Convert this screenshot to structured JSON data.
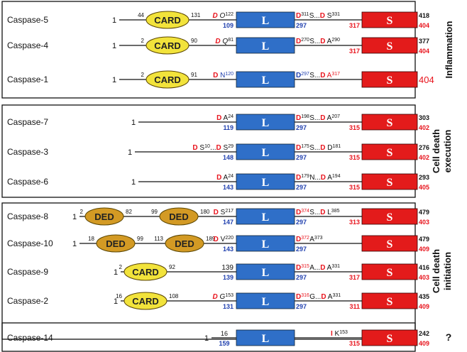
{
  "colors": {
    "red": "#e8141d",
    "blue": "#1f3fae",
    "black": "#111111",
    "domain_L": "#2f6fc8",
    "domain_S": "#e31b1b",
    "card": "#f2e33b",
    "ded": "#d39a24"
  },
  "groups": [
    {
      "label": "Inflammation",
      "rows": [
        {
          "name": "Caspase-5",
          "prodomains": [
            {
              "kind": "CARD",
              "left": "44",
              "right": "131"
            }
          ],
          "pre_links": [
            {
              "text": "D",
              "color": "red",
              "italic": true,
              "bold": true
            },
            {
              "text": " ",
              "color": "black"
            },
            {
              "text": "O",
              "color": "black",
              "italic": true
            },
            {
              "text": "122",
              "color": "black",
              "sup": true
            }
          ],
          "l_start": "109",
          "l_end_site": [
            {
              "text": "D",
              "color": "red",
              "bold": true
            },
            {
              "text": "311",
              "color": "black",
              "sup": true
            },
            {
              "text": "   S...",
              "color": "black"
            },
            {
              "text": "D",
              "color": "red",
              "bold": true
            },
            {
              "text": " S",
              "color": "black"
            },
            {
              "text": "331",
              "color": "black",
              "sup": true
            }
          ],
          "l_num": "297",
          "s_start": "317",
          "s_end_top": "418",
          "s_end_bottom": "404"
        },
        {
          "name": "Caspase-4",
          "prodomains": [
            {
              "kind": "CARD",
              "left": "2",
              "right": "90"
            }
          ],
          "pre_links": [
            {
              "text": "D",
              "color": "red",
              "italic": true,
              "bold": true
            },
            {
              "text": " ",
              "color": "black"
            },
            {
              "text": "Q",
              "color": "black",
              "italic": true
            },
            {
              "text": "81",
              "color": "black",
              "sup": true
            }
          ],
          "l_start": "",
          "l_end_site": [
            {
              "text": "D",
              "color": "red",
              "bold": true
            },
            {
              "text": "270",
              "color": "black",
              "sup": true
            },
            {
              "text": " S...",
              "color": "black"
            },
            {
              "text": "D",
              "color": "red",
              "bold": true
            },
            {
              "text": " A",
              "color": "black"
            },
            {
              "text": "290",
              "color": "black",
              "sup": true
            }
          ],
          "l_num": "",
          "s_start": "317",
          "s_end_top": "377",
          "s_end_bottom": "404"
        },
        {
          "name": "Caspase-1",
          "prodomains": [
            {
              "kind": "CARD",
              "left": "2",
              "right": "91"
            }
          ],
          "pre_links": [
            {
              "text": "D",
              "color": "red",
              "bold": true
            },
            {
              "text": " N",
              "color": "blue"
            },
            {
              "text": "120",
              "color": "blue",
              "sup": true
            }
          ],
          "l_start": "",
          "l_end_site": [
            {
              "text": "D",
              "color": "blue",
              "bold": true
            },
            {
              "text": "297",
              "color": "blue",
              "sup": true
            },
            {
              "text": " S...",
              "color": "black"
            },
            {
              "text": "D",
              "color": "red",
              "bold": true
            },
            {
              "text": " A",
              "color": "red"
            },
            {
              "text": "317",
              "color": "red",
              "sup": true
            }
          ],
          "l_num": "",
          "s_start": "",
          "s_end_top": "",
          "s_end_bottom": "404"
        }
      ]
    },
    {
      "label": "Cell death execution",
      "label_lines": [
        "Cell death",
        "execution"
      ],
      "rows": [
        {
          "name": "Caspase-7",
          "prodomains": [],
          "pre_links": [
            {
              "text": "D",
              "color": "red",
              "bold": true
            },
            {
              "text": " A",
              "color": "black"
            },
            {
              "text": "24",
              "color": "black",
              "sup": true
            }
          ],
          "l_start": "119",
          "l_end_site": [
            {
              "text": "D",
              "color": "red",
              "bold": true
            },
            {
              "text": "198",
              "color": "black",
              "sup": true
            },
            {
              "text": " S...",
              "color": "black"
            },
            {
              "text": "D",
              "color": "red",
              "bold": true
            },
            {
              "text": " A",
              "color": "black"
            },
            {
              "text": "207",
              "color": "black",
              "sup": true
            }
          ],
          "l_num": "297",
          "s_start": "315",
          "s_end_top": "303",
          "s_end_bottom": "402"
        },
        {
          "name": "Caspase-3",
          "prodomains": [],
          "pre_links": [
            {
              "text": "D",
              "color": "red",
              "bold": true
            },
            {
              "text": " S",
              "color": "black"
            },
            {
              "text": "10",
              "color": "black",
              "sup": true
            },
            {
              "text": "...",
              "color": "black"
            },
            {
              "text": "D",
              "color": "red",
              "bold": true
            },
            {
              "text": " S",
              "color": "black"
            },
            {
              "text": "29",
              "color": "black",
              "sup": true
            }
          ],
          "l_start": "148",
          "l_end_site": [
            {
              "text": "D",
              "color": "red",
              "bold": true
            },
            {
              "text": "175",
              "color": "black",
              "sup": true
            },
            {
              "text": " S...",
              "color": "black"
            },
            {
              "text": "D",
              "color": "red",
              "bold": true
            },
            {
              "text": " D",
              "color": "black"
            },
            {
              "text": "181",
              "color": "black",
              "sup": true
            }
          ],
          "l_num": "297",
          "s_start": "315",
          "s_end_top": "276",
          "s_end_bottom": "402"
        },
        {
          "name": "Caspase-6",
          "prodomains": [],
          "pre_links": [
            {
              "text": "D",
              "color": "red",
              "bold": true
            },
            {
              "text": " A",
              "color": "black"
            },
            {
              "text": "24",
              "color": "black",
              "sup": true
            }
          ],
          "l_start": "143",
          "l_end_site": [
            {
              "text": "D",
              "color": "red",
              "bold": true
            },
            {
              "text": "179",
              "color": "black",
              "sup": true
            },
            {
              "text": " N...",
              "color": "black"
            },
            {
              "text": "D",
              "color": "red",
              "bold": true
            },
            {
              "text": " A",
              "color": "black"
            },
            {
              "text": "194",
              "color": "black",
              "sup": true
            }
          ],
          "l_num": "297",
          "s_start": "315",
          "s_end_top": "293",
          "s_end_bottom": "405"
        }
      ]
    },
    {
      "label": "Cell death initiation",
      "label_lines": [
        "Cell death",
        "initiation"
      ],
      "rows": [
        {
          "name": "Caspase-8",
          "prodomains": [
            {
              "kind": "DED",
              "left": "2",
              "right": "82"
            },
            {
              "kind": "DED",
              "left": "99",
              "right": "180"
            }
          ],
          "pre_links": [
            {
              "text": "D",
              "color": "red",
              "bold": true
            },
            {
              "text": " S",
              "color": "black"
            },
            {
              "text": "217",
              "color": "black",
              "sup": true
            }
          ],
          "l_start": "147",
          "l_end_site": [
            {
              "text": "D",
              "color": "red",
              "bold": true
            },
            {
              "text": "374",
              "color": "red",
              "sup": true
            },
            {
              "text": " S...",
              "color": "black"
            },
            {
              "text": "D",
              "color": "red",
              "bold": true
            },
            {
              "text": " L",
              "color": "black"
            },
            {
              "text": "385",
              "color": "black",
              "sup": true
            }
          ],
          "l_num": "297",
          "s_start": "313",
          "s_end_top": "479",
          "s_end_bottom": "403"
        },
        {
          "name": "Caspase-10",
          "prodomains": [
            {
              "kind": "DED",
              "left": "18",
              "right": "99"
            },
            {
              "kind": "DED",
              "left": "113",
              "right": "189"
            }
          ],
          "pre_links": [
            {
              "text": "D",
              "color": "red",
              "bold": true
            },
            {
              "text": " V",
              "color": "black"
            },
            {
              "text": "220",
              "color": "black",
              "sup": true
            }
          ],
          "l_start": "143",
          "l_end_site": [
            {
              "text": "D",
              "color": "red",
              "bold": true
            },
            {
              "text": "372",
              "color": "red",
              "sup": true
            },
            {
              "text": " A",
              "color": "black"
            },
            {
              "text": "373",
              "color": "black",
              "sup": true
            }
          ],
          "l_num": "297",
          "s_start": "",
          "s_end_top": "479",
          "s_end_bottom": "409"
        },
        {
          "name": "Caspase-9",
          "prodomains": [
            {
              "kind": "CARD",
              "left": "2",
              "right": "92"
            }
          ],
          "pre_links": [
            {
              "text": "139",
              "color": "black"
            }
          ],
          "l_start": "139",
          "l_end_site": [
            {
              "text": "D",
              "color": "red",
              "bold": true
            },
            {
              "text": "315",
              "color": "red",
              "sup": true
            },
            {
              "text": " A...",
              "color": "black"
            },
            {
              "text": "D",
              "color": "red",
              "bold": true
            },
            {
              "text": " A",
              "color": "black"
            },
            {
              "text": "331",
              "color": "black",
              "sup": true
            }
          ],
          "l_num": "297",
          "s_start": "317",
          "s_end_top": "416",
          "s_end_bottom": "403"
        },
        {
          "name": "Caspase-2",
          "prodomains": [
            {
              "kind": "CARD",
              "left": "16",
              "right": "108"
            }
          ],
          "pre_links": [
            {
              "text": "D",
              "color": "red",
              "italic": true,
              "bold": true
            },
            {
              "text": " ",
              "color": "black"
            },
            {
              "text": "G",
              "color": "black",
              "italic": true
            },
            {
              "text": "153",
              "color": "black",
              "sup": true
            }
          ],
          "l_start": "131",
          "l_end_site": [
            {
              "text": "D",
              "color": "red",
              "bold": true
            },
            {
              "text": "316",
              "color": "red",
              "sup": true
            },
            {
              "text": " G...",
              "color": "black"
            },
            {
              "text": "D",
              "color": "red",
              "bold": true
            },
            {
              "text": " A",
              "color": "black"
            },
            {
              "text": "331",
              "color": "black",
              "sup": true
            }
          ],
          "l_num": "297",
          "s_start": "311",
          "s_end_top": "435",
          "s_end_bottom": "409"
        }
      ]
    },
    {
      "label": "?",
      "label_lines": [
        "?"
      ],
      "rows": [
        {
          "name": "Caspase-14",
          "prodomains": [],
          "pre_links": [],
          "l_start": "",
          "l_end_site": [
            {
              "text": "I",
              "color": "red",
              "bold": true
            },
            {
              "text": " K",
              "color": "black"
            },
            {
              "text": "153",
              "color": "black",
              "sup": true
            }
          ],
          "l_num": "",
          "s_start": "315",
          "s_end_top": "242",
          "s_end_bottom": "409",
          "prefix_top": "16",
          "prefix_bottom": "159"
        }
      ]
    }
  ],
  "domain_labels": {
    "L": "L",
    "S": "S"
  },
  "start_number": "1"
}
